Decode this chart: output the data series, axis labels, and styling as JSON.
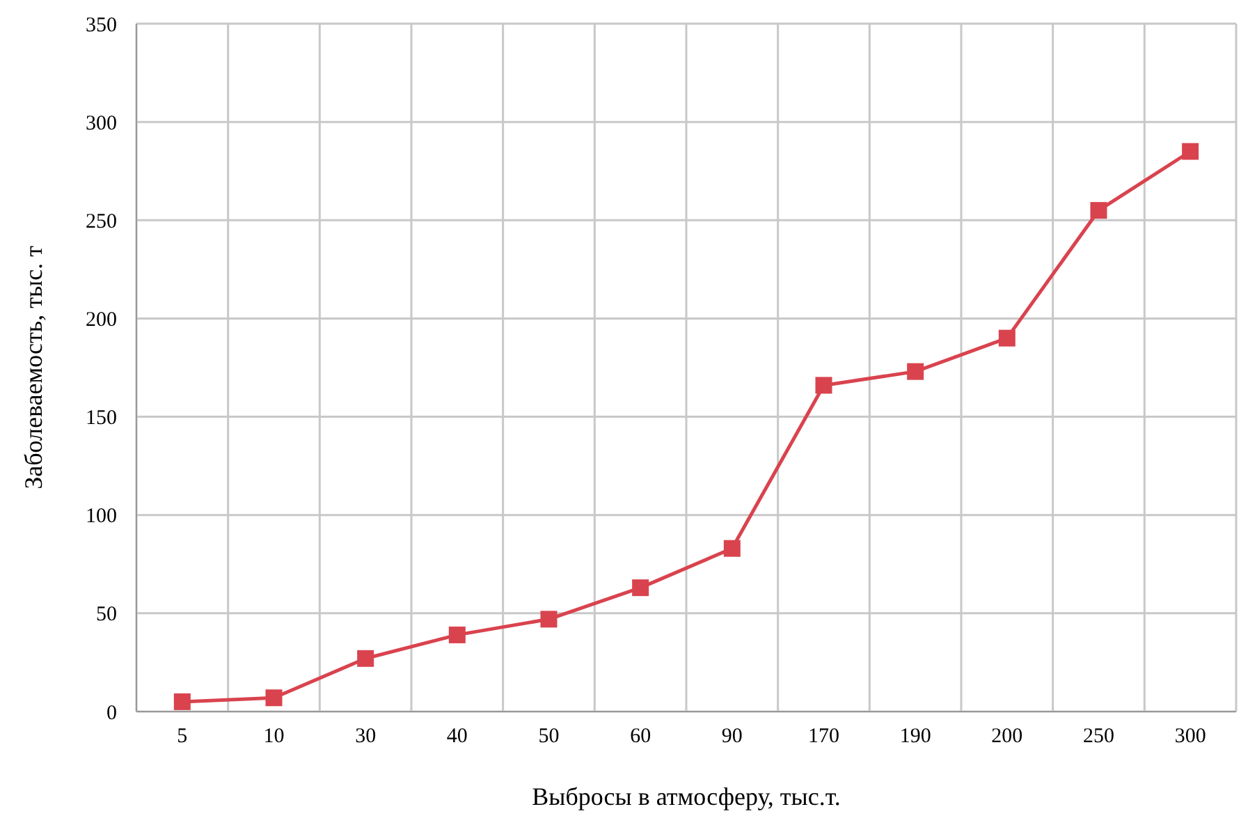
{
  "chart_data": {
    "type": "line",
    "xlabel": "Выбросы в атмосферу, тыс.т.",
    "ylabel": "Заболеваемость, тыс. т",
    "categories": [
      "5",
      "10",
      "30",
      "40",
      "50",
      "60",
      "90",
      "170",
      "190",
      "200",
      "250",
      "300"
    ],
    "series": [
      {
        "color": "#d9434e",
        "values": [
          5,
          7,
          27,
          39,
          47,
          63,
          83,
          166,
          173,
          190,
          255,
          285
        ]
      }
    ],
    "ylim": [
      0,
      350
    ],
    "yticks": [
      0,
      50,
      100,
      150,
      200,
      250,
      300,
      350
    ],
    "grid": true,
    "marker": "square",
    "line_style": "solid"
  }
}
